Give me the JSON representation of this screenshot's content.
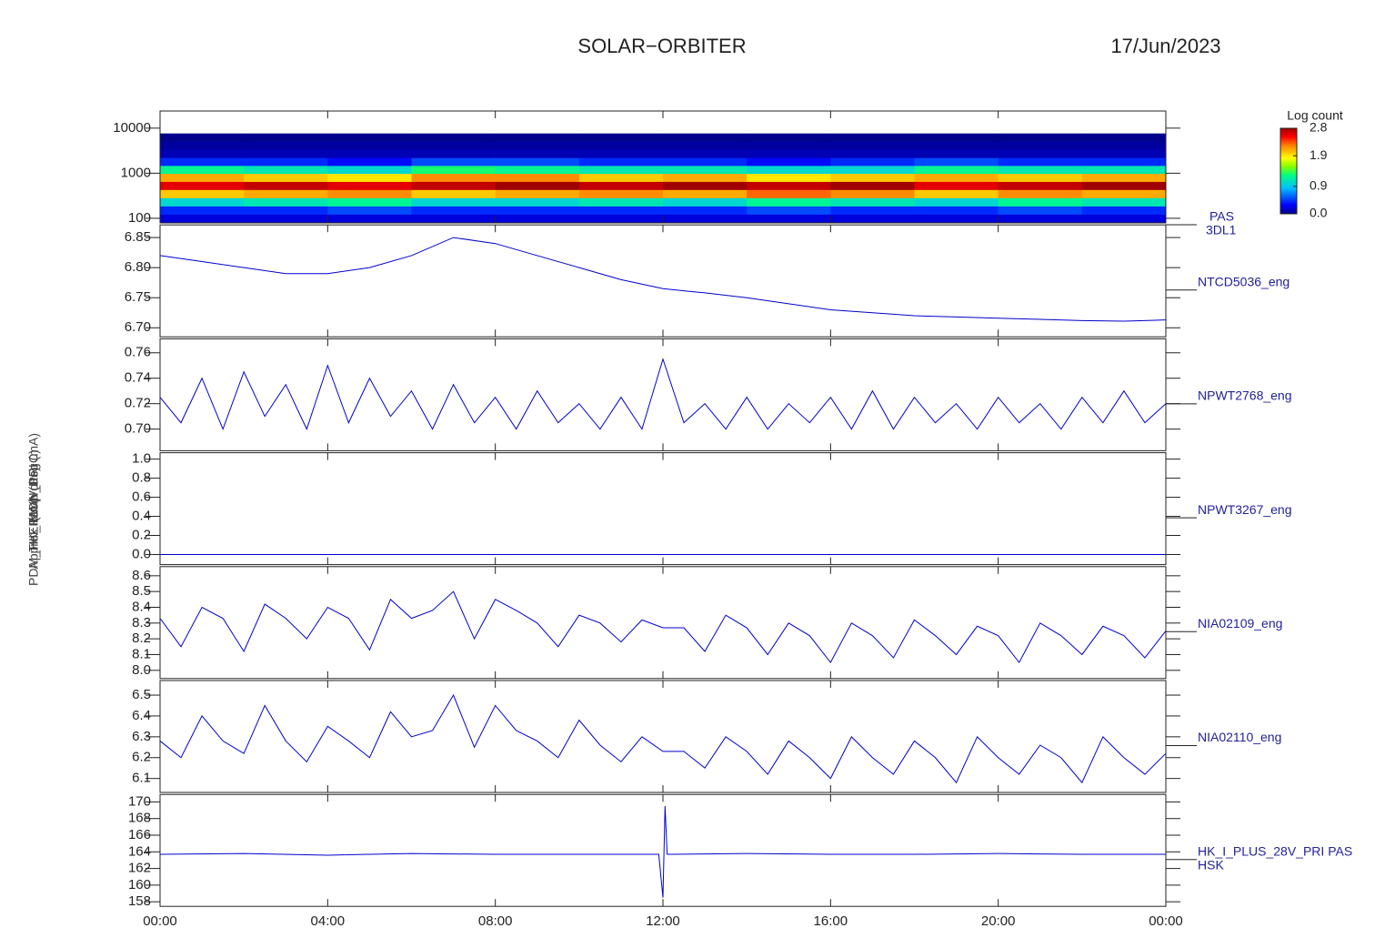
{
  "title": "SOLAR−ORBITER",
  "date": "17/Jun/2023",
  "chart_data": [
    {
      "type": "heatmap",
      "label": [
        "PAS",
        "3DL1"
      ],
      "ylabel": "(eV)",
      "log_y": true,
      "xlim": [
        0,
        24
      ],
      "xticks": [
        0,
        4,
        8,
        12,
        16,
        20,
        24
      ],
      "ylim": [
        79,
        24000
      ],
      "yticks": [
        100,
        1000,
        10000
      ],
      "x": [
        1,
        3,
        5,
        7,
        9,
        11,
        13,
        15,
        17,
        19,
        21,
        23
      ],
      "y": [
        100,
        150,
        230,
        350,
        530,
        800,
        1200,
        1800,
        2700,
        4100,
        6200
      ],
      "z": [
        [
          0.2,
          0.4,
          1.0,
          2.0,
          2.6,
          2.1,
          1.2,
          0.4,
          0.1,
          0.05,
          0.0
        ],
        [
          0.2,
          0.4,
          1.1,
          2.1,
          2.7,
          2.0,
          1.1,
          0.4,
          0.1,
          0.05,
          0.0
        ],
        [
          0.2,
          0.5,
          1.2,
          2.2,
          2.6,
          1.9,
          1.0,
          0.3,
          0.1,
          0.05,
          0.0
        ],
        [
          0.2,
          0.4,
          1.0,
          2.0,
          2.7,
          2.2,
          1.3,
          0.5,
          0.1,
          0.05,
          0.0
        ],
        [
          0.2,
          0.4,
          1.0,
          2.1,
          2.8,
          2.2,
          1.2,
          0.5,
          0.1,
          0.05,
          0.0
        ],
        [
          0.2,
          0.4,
          1.1,
          2.2,
          2.7,
          2.0,
          1.1,
          0.4,
          0.1,
          0.05,
          0.0
        ],
        [
          0.2,
          0.4,
          1.0,
          2.1,
          2.8,
          2.1,
          1.1,
          0.4,
          0.1,
          0.05,
          0.0
        ],
        [
          0.2,
          0.5,
          1.2,
          2.3,
          2.7,
          1.9,
          1.0,
          0.3,
          0.1,
          0.05,
          0.0
        ],
        [
          0.2,
          0.4,
          1.1,
          2.2,
          2.8,
          2.0,
          1.0,
          0.4,
          0.1,
          0.05,
          0.0
        ],
        [
          0.2,
          0.4,
          1.0,
          2.0,
          2.6,
          2.1,
          1.2,
          0.5,
          0.1,
          0.05,
          0.0
        ],
        [
          0.2,
          0.5,
          1.2,
          2.2,
          2.7,
          2.0,
          1.1,
          0.4,
          0.1,
          0.05,
          0.0
        ],
        [
          0.2,
          0.4,
          1.1,
          2.1,
          2.8,
          2.1,
          1.1,
          0.4,
          0.1,
          0.05,
          0.0
        ]
      ],
      "zlim": [
        0,
        2.8
      ],
      "colorbar": {
        "label": "Log count",
        "ticks": [
          {
            "value": 0,
            "label": "0.0"
          },
          0.9,
          1.9,
          2.8
        ]
      }
    },
    {
      "type": "line",
      "label": [
        "NTCD5036_eng"
      ],
      "ylabel": "Approx Temp (DegC)",
      "color": "#0000cc",
      "xlim": [
        0,
        24
      ],
      "xticks": [
        0,
        4,
        8,
        12,
        16,
        20,
        24
      ],
      "ylim": [
        6.685,
        6.871
      ],
      "yticks": [
        {
          "value": 6.7,
          "label": "6.70"
        },
        6.75,
        {
          "value": 6.8,
          "label": "6.80"
        },
        6.85
      ],
      "x": [
        0,
        1,
        2,
        3,
        4,
        5,
        6,
        7,
        8,
        9,
        10,
        11,
        12,
        13,
        14,
        15,
        16,
        17,
        18,
        19,
        20,
        21,
        22,
        23,
        24
      ],
      "values": [
        6.82,
        6.81,
        6.8,
        6.79,
        6.79,
        6.8,
        6.82,
        6.85,
        6.84,
        6.82,
        6.8,
        6.78,
        6.765,
        6.758,
        6.75,
        6.74,
        6.73,
        6.725,
        6.72,
        6.718,
        6.716,
        6.714,
        6.712,
        6.711,
        6.713
      ]
    },
    {
      "type": "line",
      "label": [
        "NPWT2768_eng"
      ],
      "color": "#0000cc",
      "xlim": [
        0,
        24
      ],
      "xticks": [
        0,
        4,
        8,
        12,
        16,
        20,
        24
      ],
      "ylim": [
        0.683,
        0.771
      ],
      "yticks": [
        {
          "value": 0.7,
          "label": "0.70"
        },
        0.72,
        0.74,
        0.76
      ],
      "x": [
        0,
        0.5,
        1,
        1.5,
        2,
        2.5,
        3,
        3.5,
        4,
        4.5,
        5,
        5.5,
        6,
        6.5,
        7,
        7.5,
        8,
        8.5,
        9,
        9.5,
        10,
        10.5,
        11,
        11.5,
        12,
        12.5,
        13,
        13.5,
        14,
        14.5,
        15,
        15.5,
        16,
        16.5,
        17,
        17.5,
        18,
        18.5,
        19,
        19.5,
        20,
        20.5,
        21,
        21.5,
        22,
        22.5,
        23,
        23.5,
        24
      ],
      "values": [
        0.725,
        0.705,
        0.74,
        0.7,
        0.745,
        0.71,
        0.735,
        0.7,
        0.75,
        0.705,
        0.74,
        0.71,
        0.73,
        0.7,
        0.735,
        0.705,
        0.725,
        0.7,
        0.73,
        0.705,
        0.72,
        0.7,
        0.725,
        0.7,
        0.755,
        0.705,
        0.72,
        0.7,
        0.725,
        0.7,
        0.72,
        0.705,
        0.725,
        0.7,
        0.73,
        0.7,
        0.725,
        0.705,
        0.72,
        0.7,
        0.725,
        0.705,
        0.72,
        0.7,
        0.725,
        0.705,
        0.73,
        0.705,
        0.72
      ]
    },
    {
      "type": "line",
      "label": [
        "NPWT3267_eng"
      ],
      "color": "#0000cc",
      "xlim": [
        0,
        24
      ],
      "xticks": [
        0,
        4,
        8,
        12,
        16,
        20,
        24
      ],
      "ylim": [
        -0.106,
        1.067
      ],
      "yticks": [
        {
          "value": 0,
          "label": "0.0"
        },
        0.2,
        0.4,
        0.6,
        0.8,
        {
          "value": 1,
          "label": "1.0"
        }
      ],
      "x": [
        0,
        24
      ],
      "values": [
        0,
        0
      ]
    },
    {
      "type": "line",
      "label": [
        "NIA02109_eng"
      ],
      "ylabel": "THERM (Volts)",
      "color": "#0000cc",
      "xlim": [
        0,
        24
      ],
      "xticks": [
        0,
        4,
        8,
        12,
        16,
        20,
        24
      ],
      "ylim": [
        7.948,
        8.658
      ],
      "yticks": [
        {
          "value": 8,
          "label": "8.0"
        },
        8.1,
        8.2,
        8.3,
        8.4,
        8.5,
        8.6
      ],
      "x": [
        0,
        0.5,
        1,
        1.5,
        2,
        2.5,
        3,
        3.5,
        4,
        4.5,
        5,
        5.5,
        6,
        6.5,
        7,
        7.5,
        8,
        8.5,
        9,
        9.5,
        10,
        10.5,
        11,
        11.5,
        12,
        12.5,
        13,
        13.5,
        14,
        14.5,
        15,
        15.5,
        16,
        16.5,
        17,
        17.5,
        18,
        18.5,
        19,
        19.5,
        20,
        20.5,
        21,
        21.5,
        22,
        22.5,
        23,
        23.5,
        24
      ],
      "values": [
        8.33,
        8.15,
        8.4,
        8.33,
        8.12,
        8.42,
        8.33,
        8.2,
        8.4,
        8.33,
        8.13,
        8.45,
        8.33,
        8.38,
        8.5,
        8.2,
        8.45,
        8.38,
        8.3,
        8.15,
        8.35,
        8.3,
        8.18,
        8.32,
        8.27,
        8.27,
        8.12,
        8.35,
        8.27,
        8.1,
        8.3,
        8.22,
        8.05,
        8.3,
        8.22,
        8.08,
        8.32,
        8.22,
        8.1,
        8.28,
        8.22,
        8.05,
        8.3,
        8.22,
        8.1,
        8.28,
        8.22,
        8.08,
        8.25
      ]
    },
    {
      "type": "line",
      "label": [
        "NIA02110_eng"
      ],
      "color": "#0000cc",
      "xlim": [
        0,
        24
      ],
      "xticks": [
        0,
        4,
        8,
        12,
        16,
        20,
        24
      ],
      "ylim": [
        6.033,
        6.57
      ],
      "yticks": [
        6.1,
        6.2,
        6.3,
        6.4,
        6.5
      ],
      "x": [
        0,
        0.5,
        1,
        1.5,
        2,
        2.5,
        3,
        3.5,
        4,
        4.5,
        5,
        5.5,
        6,
        6.5,
        7,
        7.5,
        8,
        8.5,
        9,
        9.5,
        10,
        10.5,
        11,
        11.5,
        12,
        12.5,
        13,
        13.5,
        14,
        14.5,
        15,
        15.5,
        16,
        16.5,
        17,
        17.5,
        18,
        18.5,
        19,
        19.5,
        20,
        20.5,
        21,
        21.5,
        22,
        22.5,
        23,
        23.5,
        24
      ],
      "values": [
        6.28,
        6.2,
        6.4,
        6.28,
        6.22,
        6.45,
        6.28,
        6.18,
        6.35,
        6.28,
        6.2,
        6.42,
        6.3,
        6.33,
        6.5,
        6.25,
        6.45,
        6.33,
        6.28,
        6.2,
        6.38,
        6.26,
        6.18,
        6.3,
        6.23,
        6.23,
        6.15,
        6.3,
        6.23,
        6.12,
        6.28,
        6.2,
        6.1,
        6.3,
        6.2,
        6.12,
        6.28,
        6.2,
        6.08,
        6.3,
        6.2,
        6.12,
        6.26,
        6.2,
        6.08,
        6.3,
        6.2,
        6.12,
        6.22
      ]
    },
    {
      "type": "line",
      "label": [
        "HK_I_PLUS_28V_PRI PAS",
        "HSK"
      ],
      "ylabel": "PDM_HK_IMON_PRI (mA)",
      "color": "#0000cc",
      "xlim": [
        0,
        24
      ],
      "xticks": [
        {
          "value": 0,
          "label": "00:00"
        },
        {
          "value": 4,
          "label": "04:00"
        },
        {
          "value": 8,
          "label": "08:00"
        },
        {
          "value": 12,
          "label": "12:00"
        },
        {
          "value": 16,
          "label": "16:00"
        },
        {
          "value": 20,
          "label": "20:00"
        },
        {
          "value": 24,
          "label": "00:00"
        }
      ],
      "ylim": [
        157.45,
        170.9
      ],
      "yticks": [
        158,
        160,
        162,
        164,
        166,
        168,
        170
      ],
      "x": [
        0,
        2,
        4,
        6,
        8,
        10,
        11.9,
        12,
        12.05,
        12.1,
        12.2,
        14,
        16,
        18,
        20,
        22,
        24
      ],
      "values": [
        163.7,
        163.8,
        163.6,
        163.8,
        163.7,
        163.7,
        163.7,
        158.5,
        169.5,
        163.7,
        163.7,
        163.8,
        163.7,
        163.7,
        163.8,
        163.7,
        163.7
      ]
    }
  ]
}
